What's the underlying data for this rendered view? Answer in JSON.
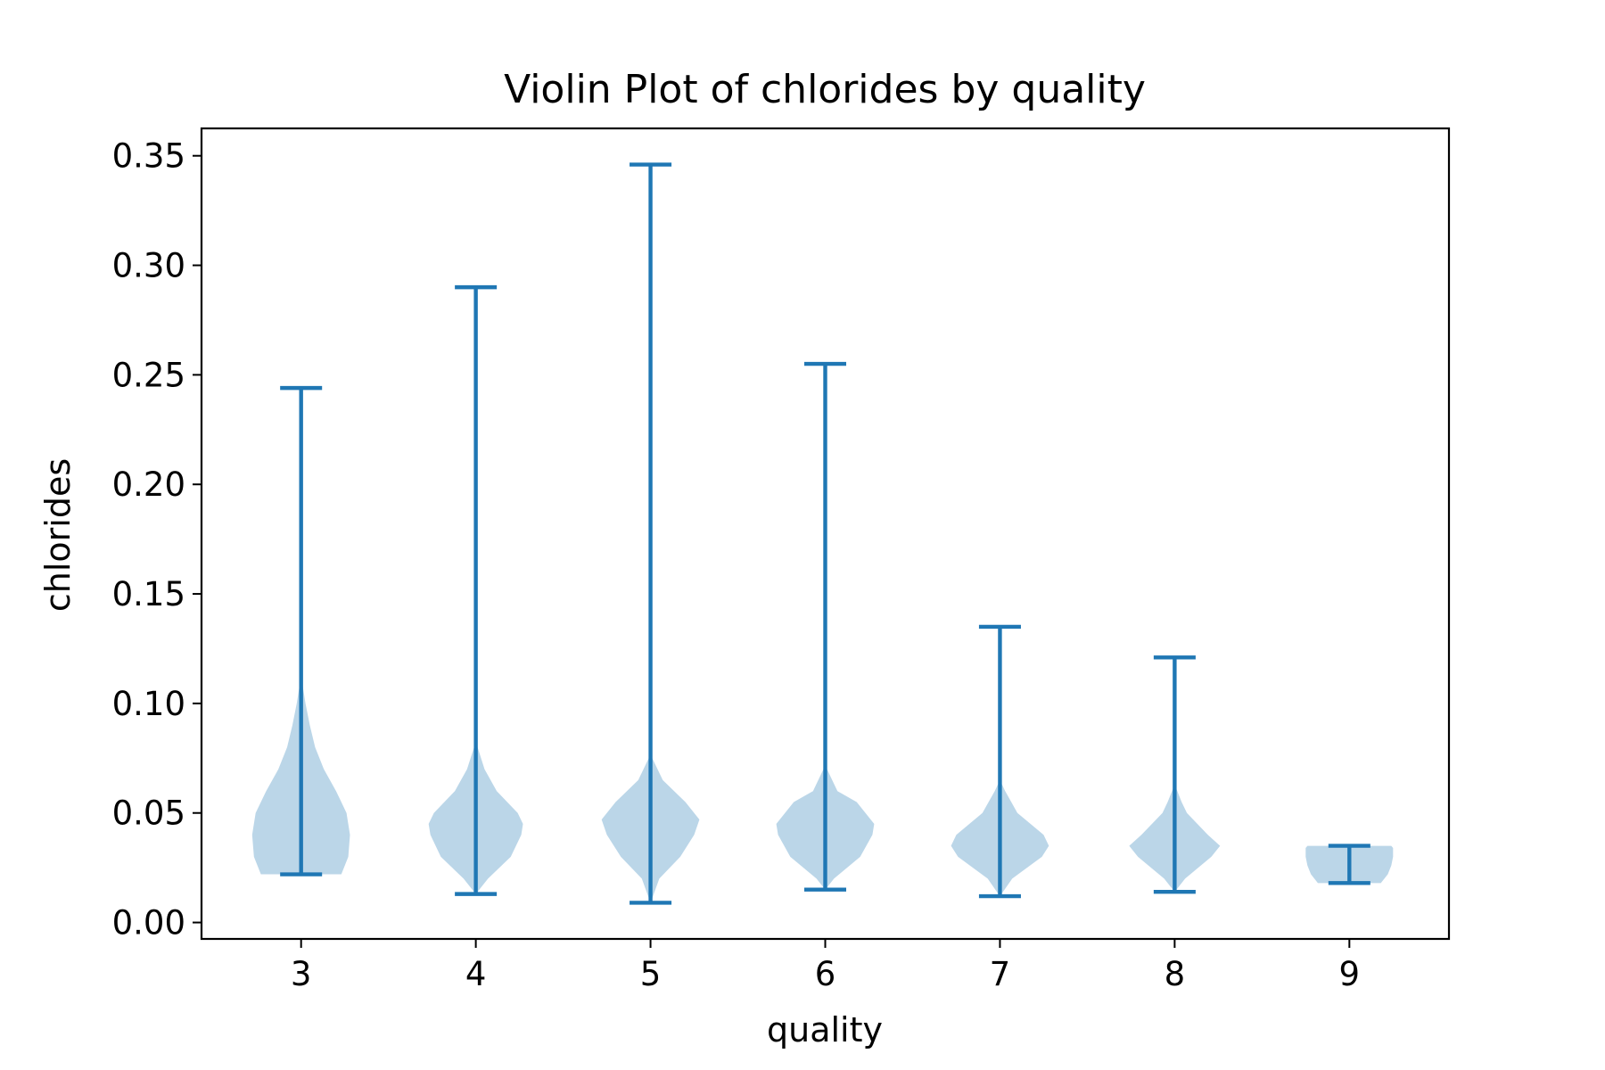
{
  "chart_data": {
    "type": "violin",
    "title": "Violin Plot of chlorides by quality",
    "xlabel": "quality",
    "ylabel": "chlorides",
    "categories": [
      "3",
      "4",
      "5",
      "6",
      "7",
      "8",
      "9"
    ],
    "y_ticks": [
      "0.00",
      "0.05",
      "0.10",
      "0.15",
      "0.20",
      "0.25",
      "0.30",
      "0.35"
    ],
    "ylim": [
      -0.0075,
      0.3625
    ],
    "xlim": [
      2.43,
      9.57
    ],
    "grid": false,
    "colors": {
      "body": "#1f77b4",
      "body_opacity": 0.3,
      "lines": "#1f77b4"
    },
    "series": [
      {
        "category": "3",
        "min": 0.022,
        "max": 0.244,
        "density": [
          [
            0.022,
            0.23
          ],
          [
            0.03,
            0.27
          ],
          [
            0.04,
            0.28
          ],
          [
            0.05,
            0.26
          ],
          [
            0.06,
            0.2
          ],
          [
            0.07,
            0.13
          ],
          [
            0.08,
            0.08
          ],
          [
            0.09,
            0.05
          ],
          [
            0.1,
            0.025
          ],
          [
            0.11,
            0.005
          ],
          [
            0.115,
            0.0
          ]
        ]
      },
      {
        "category": "4",
        "min": 0.013,
        "max": 0.29,
        "density": [
          [
            0.013,
            0.0
          ],
          [
            0.02,
            0.07
          ],
          [
            0.03,
            0.2
          ],
          [
            0.04,
            0.26
          ],
          [
            0.045,
            0.27
          ],
          [
            0.05,
            0.24
          ],
          [
            0.06,
            0.12
          ],
          [
            0.07,
            0.05
          ],
          [
            0.08,
            0.01
          ],
          [
            0.09,
            0.0
          ]
        ]
      },
      {
        "category": "5",
        "min": 0.009,
        "max": 0.346,
        "density": [
          [
            0.009,
            0.0
          ],
          [
            0.02,
            0.05
          ],
          [
            0.03,
            0.17
          ],
          [
            0.04,
            0.25
          ],
          [
            0.047,
            0.28
          ],
          [
            0.055,
            0.2
          ],
          [
            0.065,
            0.07
          ],
          [
            0.075,
            0.01
          ],
          [
            0.08,
            0.0
          ]
        ]
      },
      {
        "category": "6",
        "min": 0.015,
        "max": 0.255,
        "density": [
          [
            0.015,
            0.0
          ],
          [
            0.02,
            0.05
          ],
          [
            0.03,
            0.2
          ],
          [
            0.04,
            0.27
          ],
          [
            0.045,
            0.28
          ],
          [
            0.055,
            0.18
          ],
          [
            0.06,
            0.07
          ],
          [
            0.07,
            0.01
          ],
          [
            0.075,
            0.0
          ]
        ]
      },
      {
        "category": "7",
        "min": 0.012,
        "max": 0.135,
        "density": [
          [
            0.012,
            0.0
          ],
          [
            0.02,
            0.07
          ],
          [
            0.03,
            0.24
          ],
          [
            0.035,
            0.28
          ],
          [
            0.04,
            0.25
          ],
          [
            0.05,
            0.1
          ],
          [
            0.06,
            0.03
          ],
          [
            0.065,
            0.0
          ]
        ]
      },
      {
        "category": "8",
        "min": 0.014,
        "max": 0.121,
        "density": [
          [
            0.014,
            0.0
          ],
          [
            0.02,
            0.06
          ],
          [
            0.03,
            0.21
          ],
          [
            0.035,
            0.26
          ],
          [
            0.04,
            0.19
          ],
          [
            0.05,
            0.07
          ],
          [
            0.055,
            0.04
          ],
          [
            0.063,
            0.0
          ]
        ]
      },
      {
        "category": "9",
        "min": 0.018,
        "max": 0.035,
        "density": [
          [
            0.018,
            0.18
          ],
          [
            0.022,
            0.22
          ],
          [
            0.026,
            0.24
          ],
          [
            0.03,
            0.25
          ],
          [
            0.034,
            0.25
          ],
          [
            0.035,
            0.24
          ]
        ]
      }
    ]
  }
}
